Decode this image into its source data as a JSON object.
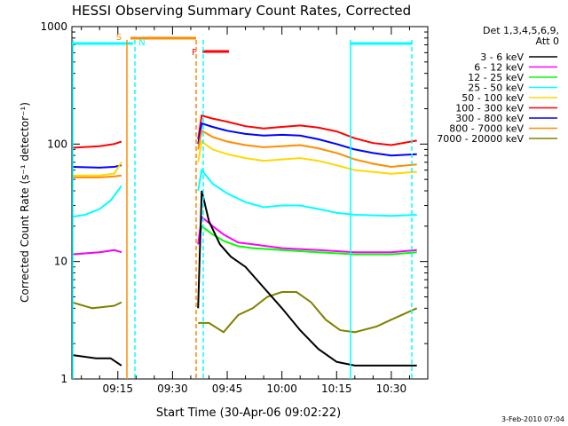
{
  "chart_data": {
    "type": "line",
    "title": "HESSI Observing Summary Count Rates, Corrected",
    "xlabel": "Start Time (30-Apr-06 09:02:22)",
    "ylabel": "Corrected Count Rate (s⁻¹ detector⁻¹)",
    "yscale": "log",
    "ylim": [
      1,
      1000
    ],
    "xlim_minutes_from_0900": [
      2.4,
      100
    ],
    "x_ticks": [
      {
        "minute": 15,
        "label": "09:15"
      },
      {
        "minute": 30,
        "label": "09:30"
      },
      {
        "minute": 45,
        "label": "09:45"
      },
      {
        "minute": 60,
        "label": "10:00"
      },
      {
        "minute": 75,
        "label": "10:15"
      },
      {
        "minute": 90,
        "label": "10:30"
      }
    ],
    "y_ticks": [
      {
        "value": 1,
        "label": "1"
      },
      {
        "value": 10,
        "label": "10"
      },
      {
        "value": 100,
        "label": "100"
      },
      {
        "value": 1000,
        "label": "1000"
      }
    ],
    "legend_header": [
      "Det 1,3,4,5,6,9,",
      "Att 0"
    ],
    "series": [
      {
        "name": "3 - 6 keV",
        "color": "#000000",
        "points": [
          [
            2.4,
            1.6
          ],
          [
            9,
            1.5
          ],
          [
            13,
            1.5
          ],
          [
            16,
            1.3
          ],
          [
            37,
            4
          ],
          [
            38,
            40
          ],
          [
            40,
            22
          ],
          [
            43,
            14
          ],
          [
            46,
            11
          ],
          [
            50,
            9
          ],
          [
            55,
            6
          ],
          [
            60,
            4
          ],
          [
            65,
            2.6
          ],
          [
            70,
            1.8
          ],
          [
            75,
            1.4
          ],
          [
            80,
            1.3
          ],
          [
            90,
            1.3
          ],
          [
            97,
            1.3
          ]
        ]
      },
      {
        "name": "6 - 12 keV",
        "color": "#ff00ff",
        "points": [
          [
            2.4,
            11.5
          ],
          [
            10,
            12
          ],
          [
            14,
            12.5
          ],
          [
            16,
            12
          ],
          [
            37,
            14
          ],
          [
            38,
            24
          ],
          [
            41,
            20
          ],
          [
            44,
            17
          ],
          [
            48,
            14.5
          ],
          [
            52,
            14
          ],
          [
            60,
            13
          ],
          [
            70,
            12.5
          ],
          [
            80,
            12
          ],
          [
            90,
            12
          ],
          [
            97,
            12.5
          ]
        ]
      },
      {
        "name": "12 - 25 keV",
        "color": "#00ff00",
        "points": [
          [
            2.4,
            11.5
          ],
          [
            10,
            12
          ],
          [
            14,
            12.5
          ],
          [
            16,
            12
          ],
          [
            37,
            14
          ],
          [
            38,
            20
          ],
          [
            41,
            17
          ],
          [
            44,
            15
          ],
          [
            48,
            13.5
          ],
          [
            52,
            13
          ],
          [
            60,
            12.5
          ],
          [
            70,
            12
          ],
          [
            80,
            11.5
          ],
          [
            90,
            11.5
          ],
          [
            97,
            12
          ]
        ]
      },
      {
        "name": "25 - 50 keV",
        "color": "#00ffff",
        "points": [
          [
            2.4,
            24
          ],
          [
            6,
            25
          ],
          [
            10,
            28
          ],
          [
            13,
            33
          ],
          [
            16,
            44
          ],
          [
            37,
            40
          ],
          [
            38,
            60
          ],
          [
            41,
            46
          ],
          [
            45,
            38
          ],
          [
            50,
            32
          ],
          [
            55,
            29
          ],
          [
            60,
            30
          ],
          [
            65,
            30
          ],
          [
            70,
            28
          ],
          [
            75,
            26
          ],
          [
            80,
            25
          ],
          [
            90,
            24.5
          ],
          [
            97,
            25
          ]
        ]
      },
      {
        "name": "50 - 100 keV",
        "color": "#ffd700",
        "points": [
          [
            2.4,
            54
          ],
          [
            10,
            54
          ],
          [
            14,
            56
          ],
          [
            16,
            70
          ],
          [
            37,
            70
          ],
          [
            38,
            105
          ],
          [
            41,
            90
          ],
          [
            45,
            82
          ],
          [
            50,
            76
          ],
          [
            55,
            72
          ],
          [
            60,
            74
          ],
          [
            65,
            76
          ],
          [
            70,
            72
          ],
          [
            75,
            66
          ],
          [
            80,
            60
          ],
          [
            90,
            56
          ],
          [
            97,
            58
          ]
        ]
      },
      {
        "name": "100 - 300 keV",
        "color": "#ff0000",
        "points": [
          [
            2.4,
            93
          ],
          [
            10,
            96
          ],
          [
            14,
            100
          ],
          [
            16,
            105
          ],
          [
            37,
            110
          ],
          [
            38,
            175
          ],
          [
            41,
            165
          ],
          [
            45,
            155
          ],
          [
            50,
            142
          ],
          [
            55,
            136
          ],
          [
            60,
            140
          ],
          [
            65,
            144
          ],
          [
            70,
            138
          ],
          [
            75,
            128
          ],
          [
            80,
            112
          ],
          [
            85,
            102
          ],
          [
            90,
            98
          ],
          [
            97,
            107
          ]
        ]
      },
      {
        "name": "300 - 800 keV",
        "color": "#0000ff",
        "points": [
          [
            2.4,
            64
          ],
          [
            10,
            63
          ],
          [
            14,
            64
          ],
          [
            16,
            66
          ],
          [
            37,
            100
          ],
          [
            38,
            150
          ],
          [
            41,
            140
          ],
          [
            45,
            130
          ],
          [
            50,
            122
          ],
          [
            55,
            118
          ],
          [
            60,
            120
          ],
          [
            65,
            118
          ],
          [
            70,
            110
          ],
          [
            75,
            100
          ],
          [
            80,
            90
          ],
          [
            85,
            84
          ],
          [
            90,
            80
          ],
          [
            97,
            82
          ]
        ]
      },
      {
        "name": "800 - 7000 keV",
        "color": "#ff8c00",
        "points": [
          [
            2.4,
            52
          ],
          [
            10,
            52
          ],
          [
            14,
            53
          ],
          [
            16,
            54
          ],
          [
            37,
            90
          ],
          [
            38,
            130
          ],
          [
            41,
            115
          ],
          [
            45,
            105
          ],
          [
            50,
            98
          ],
          [
            55,
            94
          ],
          [
            60,
            96
          ],
          [
            65,
            98
          ],
          [
            70,
            92
          ],
          [
            75,
            84
          ],
          [
            80,
            74
          ],
          [
            85,
            68
          ],
          [
            90,
            64
          ],
          [
            97,
            67
          ]
        ]
      },
      {
        "name": "7000 - 20000 keV",
        "color": "#808000",
        "points": [
          [
            2.4,
            4.5
          ],
          [
            8,
            4
          ],
          [
            14,
            4.2
          ],
          [
            16,
            4.5
          ],
          [
            37,
            3
          ],
          [
            40,
            3
          ],
          [
            44,
            2.5
          ],
          [
            48,
            3.5
          ],
          [
            52,
            4
          ],
          [
            56,
            5
          ],
          [
            60,
            5.5
          ],
          [
            64,
            5.5
          ],
          [
            68,
            4.5
          ],
          [
            72,
            3.2
          ],
          [
            76,
            2.6
          ],
          [
            80,
            2.5
          ],
          [
            86,
            2.8
          ],
          [
            90,
            3.2
          ],
          [
            97,
            4
          ]
        ]
      }
    ],
    "annotations": [
      {
        "label": "S",
        "color": "#ff8c00"
      },
      {
        "label": "N",
        "color": "#00ffff"
      },
      {
        "label": "F",
        "color": "#ff0000"
      }
    ],
    "footer_date": "3-Feb-2010 07:04"
  }
}
